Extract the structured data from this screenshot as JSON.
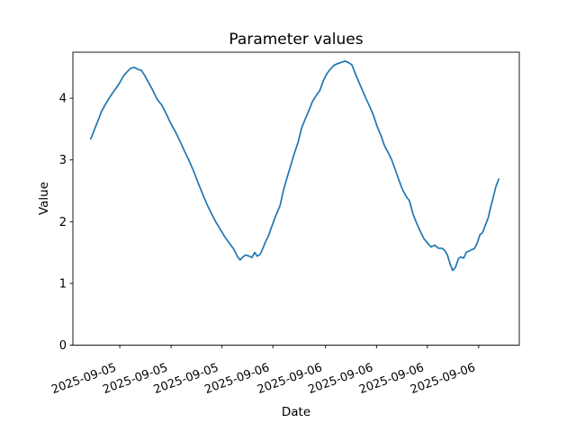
{
  "figure": {
    "background": "#ffffff",
    "text_color": "#000000"
  },
  "chart_data": {
    "type": "line",
    "title": "Parameter values",
    "xlabel": "Date",
    "ylabel": "Value",
    "grid": false,
    "legend": false,
    "line_color": "#1f77b4",
    "axis_color": "#000000",
    "ylim": [
      0,
      4.745
    ],
    "y_ticks": [
      0,
      1,
      2,
      3,
      4
    ],
    "x_ticks": [
      {
        "label": "2025-09-05",
        "pos_pct": 10.5
      },
      {
        "label": "2025-09-05",
        "pos_pct": 22.0
      },
      {
        "label": "2025-09-05",
        "pos_pct": 33.4
      },
      {
        "label": "2025-09-06",
        "pos_pct": 44.8
      },
      {
        "label": "2025-09-06",
        "pos_pct": 56.6
      },
      {
        "label": "2025-09-06",
        "pos_pct": 68.0
      },
      {
        "label": "2025-09-06",
        "pos_pct": 79.4
      },
      {
        "label": "2025-09-06",
        "pos_pct": 90.9
      }
    ],
    "x_tick_label_rotation_deg": 20,
    "data_span_pct": [
      4.0,
      95.4
    ],
    "series": [
      {
        "name": "Parameter",
        "points_t_pct_value": [
          [
            0,
            3.34
          ],
          [
            0.9,
            3.49
          ],
          [
            1.8,
            3.64
          ],
          [
            2.6,
            3.78
          ],
          [
            3.5,
            3.89
          ],
          [
            4.4,
            3.99
          ],
          [
            5.3,
            4.08
          ],
          [
            6.2,
            4.16
          ],
          [
            7.1,
            4.25
          ],
          [
            7.9,
            4.35
          ],
          [
            8.8,
            4.42
          ],
          [
            9.7,
            4.48
          ],
          [
            10.6,
            4.5
          ],
          [
            11.5,
            4.47
          ],
          [
            12.4,
            4.45
          ],
          [
            13.2,
            4.37
          ],
          [
            14.1,
            4.26
          ],
          [
            15.2,
            4.13
          ],
          [
            16.3,
            3.98
          ],
          [
            17.4,
            3.89
          ],
          [
            18.5,
            3.75
          ],
          [
            19.6,
            3.59
          ],
          [
            20.8,
            3.45
          ],
          [
            21.9,
            3.3
          ],
          [
            23,
            3.14
          ],
          [
            24.1,
            2.99
          ],
          [
            25.2,
            2.82
          ],
          [
            26.3,
            2.63
          ],
          [
            27.4,
            2.45
          ],
          [
            28.5,
            2.28
          ],
          [
            29.6,
            2.13
          ],
          [
            30.7,
            1.99
          ],
          [
            31.8,
            1.87
          ],
          [
            32.9,
            1.75
          ],
          [
            34,
            1.65
          ],
          [
            35.1,
            1.55
          ],
          [
            36,
            1.43
          ],
          [
            36.6,
            1.38
          ],
          [
            37.3,
            1.43
          ],
          [
            38,
            1.46
          ],
          [
            38.9,
            1.44
          ],
          [
            39.5,
            1.42
          ],
          [
            40.2,
            1.5
          ],
          [
            40.8,
            1.44
          ],
          [
            41.5,
            1.47
          ],
          [
            42.2,
            1.57
          ],
          [
            42.8,
            1.67
          ],
          [
            43.5,
            1.76
          ],
          [
            44.2,
            1.89
          ],
          [
            44.8,
            2.0
          ],
          [
            45.5,
            2.12
          ],
          [
            46.4,
            2.26
          ],
          [
            47.2,
            2.5
          ],
          [
            48.1,
            2.71
          ],
          [
            49,
            2.91
          ],
          [
            49.9,
            3.11
          ],
          [
            50.8,
            3.28
          ],
          [
            51.7,
            3.52
          ],
          [
            52.5,
            3.65
          ],
          [
            53.4,
            3.79
          ],
          [
            54.3,
            3.94
          ],
          [
            55.2,
            4.04
          ],
          [
            56.1,
            4.12
          ],
          [
            57,
            4.28
          ],
          [
            57.8,
            4.39
          ],
          [
            58.7,
            4.47
          ],
          [
            59.6,
            4.53
          ],
          [
            60.5,
            4.56
          ],
          [
            61.4,
            4.58
          ],
          [
            62.3,
            4.6
          ],
          [
            63.1,
            4.58
          ],
          [
            64,
            4.54
          ],
          [
            64.9,
            4.39
          ],
          [
            65.8,
            4.25
          ],
          [
            66.7,
            4.11
          ],
          [
            67.5,
            3.99
          ],
          [
            68.4,
            3.86
          ],
          [
            69.3,
            3.72
          ],
          [
            70.2,
            3.54
          ],
          [
            71.1,
            3.4
          ],
          [
            72,
            3.23
          ],
          [
            72.8,
            3.13
          ],
          [
            73.7,
            3.01
          ],
          [
            74.6,
            2.85
          ],
          [
            75.5,
            2.68
          ],
          [
            76.4,
            2.52
          ],
          [
            77.3,
            2.41
          ],
          [
            78.1,
            2.34
          ],
          [
            79,
            2.12
          ],
          [
            79.9,
            1.97
          ],
          [
            80.8,
            1.84
          ],
          [
            81.7,
            1.72
          ],
          [
            82.6,
            1.65
          ],
          [
            83.4,
            1.59
          ],
          [
            84.3,
            1.62
          ],
          [
            85.2,
            1.57
          ],
          [
            86.1,
            1.57
          ],
          [
            86.8,
            1.53
          ],
          [
            87.4,
            1.46
          ],
          [
            88.1,
            1.31
          ],
          [
            88.7,
            1.21
          ],
          [
            89.4,
            1.26
          ],
          [
            90.1,
            1.4
          ],
          [
            90.7,
            1.43
          ],
          [
            91.4,
            1.41
          ],
          [
            92.1,
            1.51
          ],
          [
            92.7,
            1.52
          ],
          [
            93.4,
            1.55
          ],
          [
            94,
            1.56
          ],
          [
            94.7,
            1.65
          ],
          [
            95.4,
            1.79
          ],
          [
            96,
            1.82
          ],
          [
            96.7,
            1.94
          ],
          [
            97.4,
            2.06
          ],
          [
            98,
            2.23
          ],
          [
            98.7,
            2.41
          ],
          [
            99.3,
            2.57
          ],
          [
            100,
            2.69
          ]
        ]
      }
    ]
  }
}
